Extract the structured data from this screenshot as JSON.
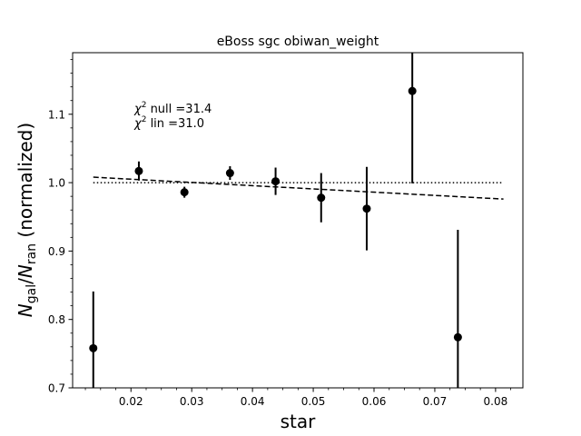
{
  "chart_data": {
    "type": "scatter",
    "title": "eBoss sgc obiwan_weight",
    "xlabel": "star",
    "ylabel_main": "N",
    "ylabel_sub1": "gal",
    "ylabel_sep": "/",
    "ylabel_sub2": "ran",
    "ylabel_suffix": " (normalized)",
    "xlim": [
      0.0104,
      0.0845
    ],
    "ylim": [
      0.7,
      1.19
    ],
    "x_ticks": [
      0.02,
      0.03,
      0.04,
      0.05,
      0.06,
      0.07,
      0.08
    ],
    "x_tick_labels": [
      "0.02",
      "0.03",
      "0.04",
      "0.05",
      "0.06",
      "0.07",
      "0.08"
    ],
    "y_ticks": [
      0.7,
      0.8,
      0.9,
      1.0,
      1.1
    ],
    "y_tick_labels": [
      "0.7",
      "0.8",
      "0.9",
      "1.0",
      "1.1"
    ],
    "annotations": [
      {
        "chi": "χ",
        "sup": "2",
        "text": " null =31.4"
      },
      {
        "chi": "χ",
        "sup": "2",
        "text": " lin =31.0"
      }
    ],
    "series": [
      {
        "type": "errorbar",
        "points": [
          {
            "x": 0.0138,
            "y": 0.758,
            "err": 0.083
          },
          {
            "x": 0.0213,
            "y": 1.017,
            "err": 0.014
          },
          {
            "x": 0.0288,
            "y": 0.986,
            "err": 0.008
          },
          {
            "x": 0.0363,
            "y": 1.014,
            "err": 0.01
          },
          {
            "x": 0.0438,
            "y": 1.002,
            "err": 0.02
          },
          {
            "x": 0.0513,
            "y": 0.978,
            "err": 0.036
          },
          {
            "x": 0.0588,
            "y": 0.962,
            "err": 0.061
          },
          {
            "x": 0.0663,
            "y": 1.134,
            "err": 0.135
          },
          {
            "x": 0.0738,
            "y": 0.774,
            "err": 0.157
          }
        ]
      },
      {
        "type": "null-line",
        "x": [
          0.0138,
          0.0813
        ],
        "y": [
          1.0,
          1.0
        ],
        "style": "dotted"
      },
      {
        "type": "linear-fit",
        "x": [
          0.0138,
          0.0813
        ],
        "y": [
          1.008,
          0.976
        ],
        "style": "dashed"
      }
    ],
    "grid": false,
    "legend": "none"
  }
}
